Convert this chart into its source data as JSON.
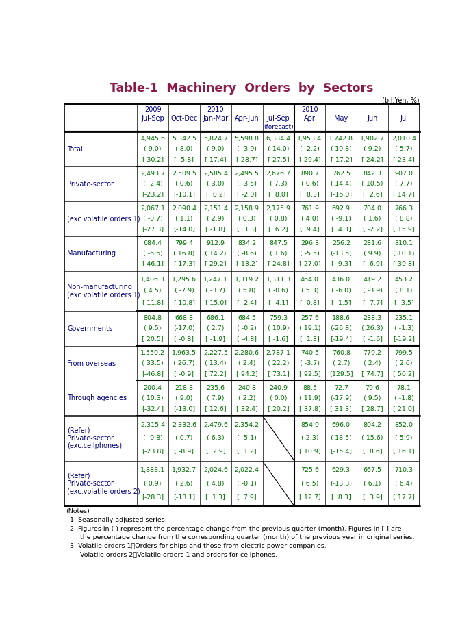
{
  "title": "Table-1  Machinery  Orders  by  Sectors",
  "subtitle": "(bil.Yen, %)",
  "title_color": "#8B1A4A",
  "header_year1": [
    "2009",
    "",
    "2010",
    "",
    "",
    "2010",
    "",
    "",
    ""
  ],
  "header_period": [
    "Jul-Sep",
    "Oct-Dec",
    "Jan-Mar",
    "Apr-Jun",
    "Jul-Sep",
    "Apr",
    "May",
    "Jun",
    "Jul"
  ],
  "header_forecast": [
    "",
    "",
    "",
    "",
    "(forecast)",
    "",
    "",
    "",
    ""
  ],
  "col_header_color": "#000080",
  "data_color": "#007000",
  "label_color": "#000080",
  "rows": [
    {
      "label": [
        "Total"
      ],
      "thick_above": true,
      "thick_below": false,
      "data": [
        [
          "4,945.6",
          "( 9.0)",
          "[-30.2]"
        ],
        [
          "5,342.5",
          "( 8.0)",
          "[ -5.8]"
        ],
        [
          "5,824.7",
          "( 9.0)",
          "[ 17.4]"
        ],
        [
          "5,598.8",
          "( -3.9)",
          "[ 28.7]"
        ],
        [
          "6,384.4",
          "( 14.0)",
          "[ 27.5]"
        ],
        [
          "1,953.4",
          "( -2.2)",
          "[ 29.4]"
        ],
        [
          "1,742.8",
          "(-10.8)",
          "[ 17.2]"
        ],
        [
          "1,902.7",
          "( 9.2)",
          "[ 24.2]"
        ],
        [
          "2,010.4",
          "( 5.7)",
          "[ 23.4]"
        ]
      ]
    },
    {
      "label": [
        "  Private-sector"
      ],
      "thick_above": true,
      "thick_below": false,
      "data": [
        [
          "2,493.7",
          "( -2.4)",
          "[-23.2]"
        ],
        [
          "2,509.5",
          "( 0.6)",
          "[-10.1]"
        ],
        [
          "2,585.4",
          "( 3.0)",
          "[  0.2]"
        ],
        [
          "2,495.5",
          "( -3.5)",
          "[ -2.0]"
        ],
        [
          "2,676.7",
          "( 7.3)",
          "[  8.0]"
        ],
        [
          "890.7",
          "( 0.6)",
          "[  8.3]"
        ],
        [
          "762.5",
          "(-14.4)",
          "[-16.0]"
        ],
        [
          "842.3",
          "( 10.5)",
          "[  2.6]"
        ],
        [
          "907.0",
          "( 7.7)",
          "[ 14.7]"
        ]
      ]
    },
    {
      "label": [
        "  (exc.volatile orders 1)"
      ],
      "thick_above": false,
      "thick_below": false,
      "data": [
        [
          "2,067.1",
          "( -0.7)",
          "[-27.3]"
        ],
        [
          "2,090.4",
          "( 1.1)",
          "[-14.0]"
        ],
        [
          "2,151.4",
          "( 2.9)",
          "[ -1.8]"
        ],
        [
          "2,158.9",
          "( 0.3)",
          "[  3.3]"
        ],
        [
          "2,175.9",
          "( 0.8)",
          "[  6.2]"
        ],
        [
          "761.9",
          "( 4.0)",
          "[  9.4]"
        ],
        [
          "692.9",
          "( -9.1)",
          "[  4.3]"
        ],
        [
          "704.0",
          "( 1.6)",
          "[ -2.2]"
        ],
        [
          "766.3",
          "( 8.8)",
          "[ 15.9]"
        ]
      ]
    },
    {
      "label": [
        "    Manufacturing"
      ],
      "thick_above": true,
      "thick_below": false,
      "data": [
        [
          "684.4",
          "( -6.6)",
          "[-46.1]"
        ],
        [
          "799.4",
          "( 16.8)",
          "[-17.3]"
        ],
        [
          "912.9",
          "( 14.2)",
          "[ 29.2]"
        ],
        [
          "834.2",
          "( -8.6)",
          "[ 13.2]"
        ],
        [
          "847.5",
          "( 1.6)",
          "[ 24.8]"
        ],
        [
          "296.3",
          "( -5.5)",
          "[ 27.0]"
        ],
        [
          "256.2",
          "(-13.5)",
          "[  9.3]"
        ],
        [
          "281.6",
          "( 9.9)",
          "[  6.9]"
        ],
        [
          "310.1",
          "( 10.1)",
          "[ 39.8]"
        ]
      ]
    },
    {
      "label": [
        "    Non-manufacturing",
        "    (exc.volatile orders 1)"
      ],
      "thick_above": false,
      "thick_below": false,
      "data": [
        [
          "1,406.3",
          "( 4.5)",
          "[-11.8]"
        ],
        [
          "1,295.6",
          "( -7.9)",
          "[-10.8]"
        ],
        [
          "1,247.1",
          "( -3.7)",
          "[-15.0]"
        ],
        [
          "1,319.2",
          "( 5.8)",
          "[ -2.4]"
        ],
        [
          "1,311.3",
          "( -0.6)",
          "[ -4.1]"
        ],
        [
          "464.0",
          "( 5.3)",
          "[  0.8]"
        ],
        [
          "436.0",
          "( -6.0)",
          "[  1.5]"
        ],
        [
          "419.2",
          "( -3.9)",
          "[ -7.7]"
        ],
        [
          "453.2",
          "( 8.1)",
          "[  3.5]"
        ]
      ]
    },
    {
      "label": [
        "  Governments"
      ],
      "thick_above": true,
      "thick_below": false,
      "data": [
        [
          "804.8",
          "( 9.5)",
          "[ 20.5]"
        ],
        [
          "668.3",
          "(-17.0)",
          "[ -0.8]"
        ],
        [
          "686.1",
          "( 2.7)",
          "[ -1.9]"
        ],
        [
          "684.5",
          "( -0.2)",
          "[ -4.8]"
        ],
        [
          "759.3",
          "( 10.9)",
          "[ -1.6]"
        ],
        [
          "257.6",
          "( 19.1)",
          "[  1.3]"
        ],
        [
          "188.6",
          "(-26.8)",
          "[-19.4]"
        ],
        [
          "238.3",
          "( 26.3)",
          "[ -1.6]"
        ],
        [
          "235.1",
          "( -1.3)",
          "[-19.2]"
        ]
      ]
    },
    {
      "label": [
        "  From overseas"
      ],
      "thick_above": true,
      "thick_below": false,
      "data": [
        [
          "1,550.2",
          "( 33.5)",
          "[-46.8]"
        ],
        [
          "1,963.5",
          "( 26.7)",
          "[ -0.9]"
        ],
        [
          "2,227.5",
          "( 13.4)",
          "[ 72.2]"
        ],
        [
          "2,280.6",
          "( 2.4)",
          "[ 94.2]"
        ],
        [
          "2,787.1",
          "( 22.2)",
          "[ 73.1]"
        ],
        [
          "740.5",
          "( -3.7)",
          "[ 92.5]"
        ],
        [
          "760.8",
          "( 2.7)",
          "[129.5]"
        ],
        [
          "779.2",
          "( 2.4)",
          "[ 74.7]"
        ],
        [
          "799.5",
          "( 2.6)",
          "[ 50.2]"
        ]
      ]
    },
    {
      "label": [
        "  Through agencies"
      ],
      "thick_above": true,
      "thick_below": true,
      "data": [
        [
          "200.4",
          "( 10.3)",
          "[-32.4]"
        ],
        [
          "218.3",
          "( 9.0)",
          "[-13.0]"
        ],
        [
          "235.6",
          "( 7.9)",
          "[ 12.6]"
        ],
        [
          "240.8",
          "( 2.2)",
          "[ 32.4]"
        ],
        [
          "240.9",
          "( 0.0)",
          "[ 20.2]"
        ],
        [
          "88.5",
          "( 11.9)",
          "[ 37.8]"
        ],
        [
          "72.7",
          "(-17.9)",
          "[ 31.3]"
        ],
        [
          "79.6",
          "( 9.5)",
          "[ 28.7]"
        ],
        [
          "78.1",
          "( -1.8)",
          "[ 21.0]"
        ]
      ]
    },
    {
      "label": [
        "(Refer)",
        "  Private-sector",
        "  (exc.cellphones)"
      ],
      "thick_above": true,
      "thick_below": false,
      "slash_col": 4,
      "data": [
        [
          "2,315.4",
          "( -0.8)",
          "[-23.8]"
        ],
        [
          "2,332.6",
          "( 0.7)",
          "[ -8.9]"
        ],
        [
          "2,479.6",
          "( 6.3)",
          "[  2.9]"
        ],
        [
          "2,354.2",
          "( -5.1)",
          "[  1.2]"
        ],
        [
          "",
          "",
          ""
        ],
        [
          "854.0",
          "( 2.3)",
          "[ 10.9]"
        ],
        [
          "696.0",
          "(-18.5)",
          "[-15.4]"
        ],
        [
          "804.2",
          "( 15.6)",
          "[  8.6]"
        ],
        [
          "852.0",
          "( 5.9)",
          "[ 16.1]"
        ]
      ]
    },
    {
      "label": [
        "(Refer)",
        "  Private-sector",
        "  (exc.volatile orders 2)"
      ],
      "thick_above": false,
      "thick_below": true,
      "slash_col": 4,
      "data": [
        [
          "1,883.1",
          "( 0.9)",
          "[-28.3]"
        ],
        [
          "1,932.7",
          "( 2.6)",
          "[-13.1]"
        ],
        [
          "2,024.6",
          "( 4.8)",
          "[  1.3]"
        ],
        [
          "2,022.4",
          "( -0.1)",
          "[  7.9]"
        ],
        [
          "",
          "",
          ""
        ],
        [
          "725.6",
          "( 6.5)",
          "[ 12.7]"
        ],
        [
          "629.3",
          "(-13.3)",
          "[  8.3]"
        ],
        [
          "667.5",
          "( 6.1)",
          "[  3.9]"
        ],
        [
          "710.3",
          "( 6.4)",
          "[ 17.7]"
        ]
      ]
    }
  ],
  "notes": [
    "(Notes)",
    "  1. Seasonally adjusted series.",
    "  2. Figures in ( ) represent the percentage change from the previous quarter (month). Figures in [ ] are",
    "       the percentage change from the corresponding quarter (month) of the previous year in original series.",
    "  3. Volatile orders 1：Orders for ships and those from electric power companies.",
    "       Volatile orders 2：Volatile orders 1 and orders for cellphones."
  ]
}
